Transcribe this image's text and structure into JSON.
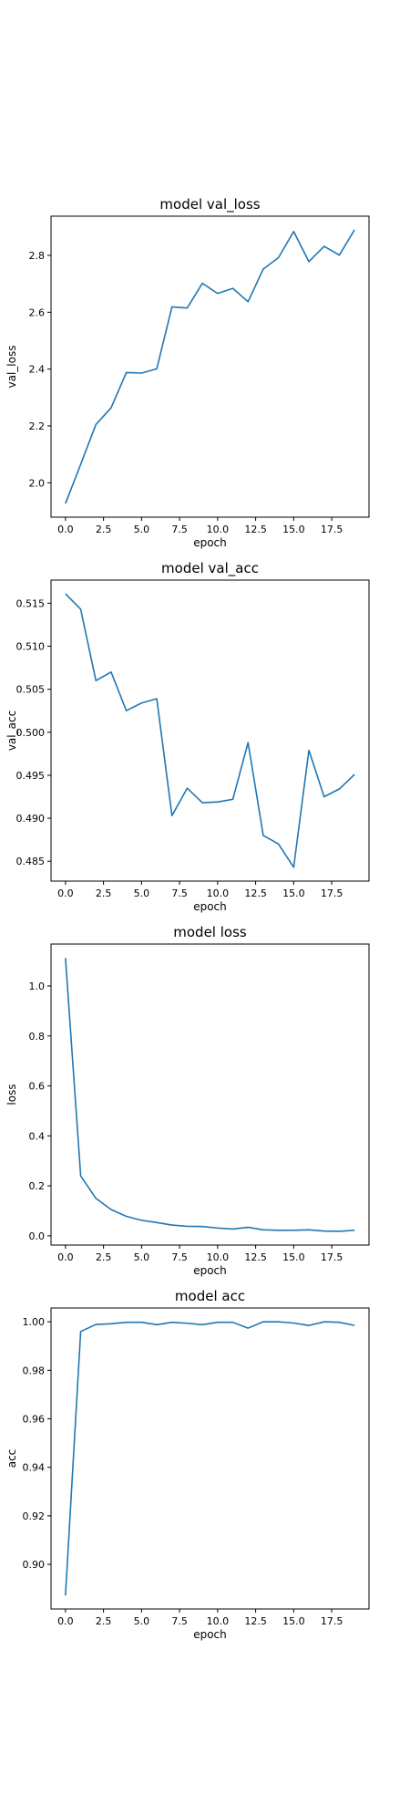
{
  "colors": {
    "line": "#1f77b4",
    "axes": "#000000",
    "background": "#ffffff"
  },
  "chart_data": [
    {
      "type": "line",
      "title": "model val_loss",
      "xlabel": "epoch",
      "ylabel": "val_loss",
      "x": [
        0,
        1,
        2,
        3,
        4,
        5,
        6,
        7,
        8,
        9,
        10,
        11,
        12,
        13,
        14,
        15,
        16,
        17,
        18,
        19
      ],
      "values": [
        1.927,
        2.065,
        2.205,
        2.264,
        2.388,
        2.386,
        2.401,
        2.619,
        2.615,
        2.702,
        2.666,
        2.684,
        2.637,
        2.752,
        2.792,
        2.884,
        2.778,
        2.832,
        2.801,
        2.89
      ],
      "xlim": [
        -0.95,
        19.95
      ],
      "ylim": [
        1.879,
        2.938
      ],
      "xticks": [
        0,
        2.5,
        5,
        7.5,
        10,
        12.5,
        15,
        17.5
      ],
      "xtick_labels": [
        "0.0",
        "2.5",
        "5.0",
        "7.5",
        "10.0",
        "12.5",
        "15.0",
        "17.5"
      ],
      "yticks": [
        2.0,
        2.2,
        2.4,
        2.6,
        2.8
      ],
      "ytick_labels": [
        "2.0",
        "2.2",
        "2.4",
        "2.6",
        "2.8"
      ],
      "grid": false
    },
    {
      "type": "line",
      "title": "model val_acc",
      "xlabel": "epoch",
      "ylabel": "val_acc",
      "x": [
        0,
        1,
        2,
        3,
        4,
        5,
        6,
        7,
        8,
        9,
        10,
        11,
        12,
        13,
        14,
        15,
        16,
        17,
        18,
        19
      ],
      "values": [
        0.5161,
        0.5143,
        0.506,
        0.507,
        0.5025,
        0.5034,
        0.5039,
        0.4903,
        0.4935,
        0.4918,
        0.4919,
        0.4922,
        0.4988,
        0.488,
        0.487,
        0.4843,
        0.4979,
        0.4925,
        0.4934,
        0.4951
      ],
      "xlim": [
        -0.95,
        19.95
      ],
      "ylim": [
        0.48269,
        0.51769
      ],
      "xticks": [
        0,
        2.5,
        5,
        7.5,
        10,
        12.5,
        15,
        17.5
      ],
      "xtick_labels": [
        "0.0",
        "2.5",
        "5.0",
        "7.5",
        "10.0",
        "12.5",
        "15.0",
        "17.5"
      ],
      "yticks": [
        0.485,
        0.49,
        0.495,
        0.5,
        0.505,
        0.51,
        0.515
      ],
      "ytick_labels": [
        "0.485",
        "0.490",
        "0.495",
        "0.500",
        "0.505",
        "0.510",
        "0.515"
      ],
      "grid": false
    },
    {
      "type": "line",
      "title": "model loss",
      "xlabel": "epoch",
      "ylabel": "loss",
      "x": [
        0,
        1,
        2,
        3,
        4,
        5,
        6,
        7,
        8,
        9,
        10,
        11,
        12,
        13,
        14,
        15,
        16,
        17,
        18,
        19
      ],
      "values": [
        1.112,
        0.24,
        0.15,
        0.105,
        0.078,
        0.062,
        0.053,
        0.043,
        0.038,
        0.037,
        0.031,
        0.027,
        0.034,
        0.024,
        0.022,
        0.022,
        0.024,
        0.019,
        0.018,
        0.022
      ],
      "xlim": [
        -0.95,
        19.95
      ],
      "ylim": [
        -0.037,
        1.168
      ],
      "xticks": [
        0,
        2.5,
        5,
        7.5,
        10,
        12.5,
        15,
        17.5
      ],
      "xtick_labels": [
        "0.0",
        "2.5",
        "5.0",
        "7.5",
        "10.0",
        "12.5",
        "15.0",
        "17.5"
      ],
      "yticks": [
        0.0,
        0.2,
        0.4,
        0.6,
        0.8,
        1.0
      ],
      "ytick_labels": [
        "0.0",
        "0.2",
        "0.4",
        "0.6",
        "0.8",
        "1.0"
      ],
      "grid": false
    },
    {
      "type": "line",
      "title": "model acc",
      "xlabel": "epoch",
      "ylabel": "acc",
      "x": [
        0,
        1,
        2,
        3,
        4,
        5,
        6,
        7,
        8,
        9,
        10,
        11,
        12,
        13,
        14,
        15,
        16,
        17,
        18,
        19
      ],
      "values": [
        0.8872,
        0.996,
        0.9989,
        0.9992,
        0.9998,
        0.9998,
        0.9988,
        0.9998,
        0.9994,
        0.9988,
        0.9998,
        0.9998,
        0.9974,
        1.0,
        1.0,
        0.9995,
        0.9985,
        1.0,
        0.9998,
        0.9985
      ],
      "xlim": [
        -0.95,
        19.95
      ],
      "ylim": [
        0.8816,
        1.0057
      ],
      "xticks": [
        0,
        2.5,
        5,
        7.5,
        10,
        12.5,
        15,
        17.5
      ],
      "xtick_labels": [
        "0.0",
        "2.5",
        "5.0",
        "7.5",
        "10.0",
        "12.5",
        "15.0",
        "17.5"
      ],
      "yticks": [
        0.9,
        0.92,
        0.94,
        0.96,
        0.98,
        1.0
      ],
      "ytick_labels": [
        "0.90",
        "0.92",
        "0.94",
        "0.96",
        "0.98",
        "1.00"
      ],
      "grid": false
    }
  ]
}
